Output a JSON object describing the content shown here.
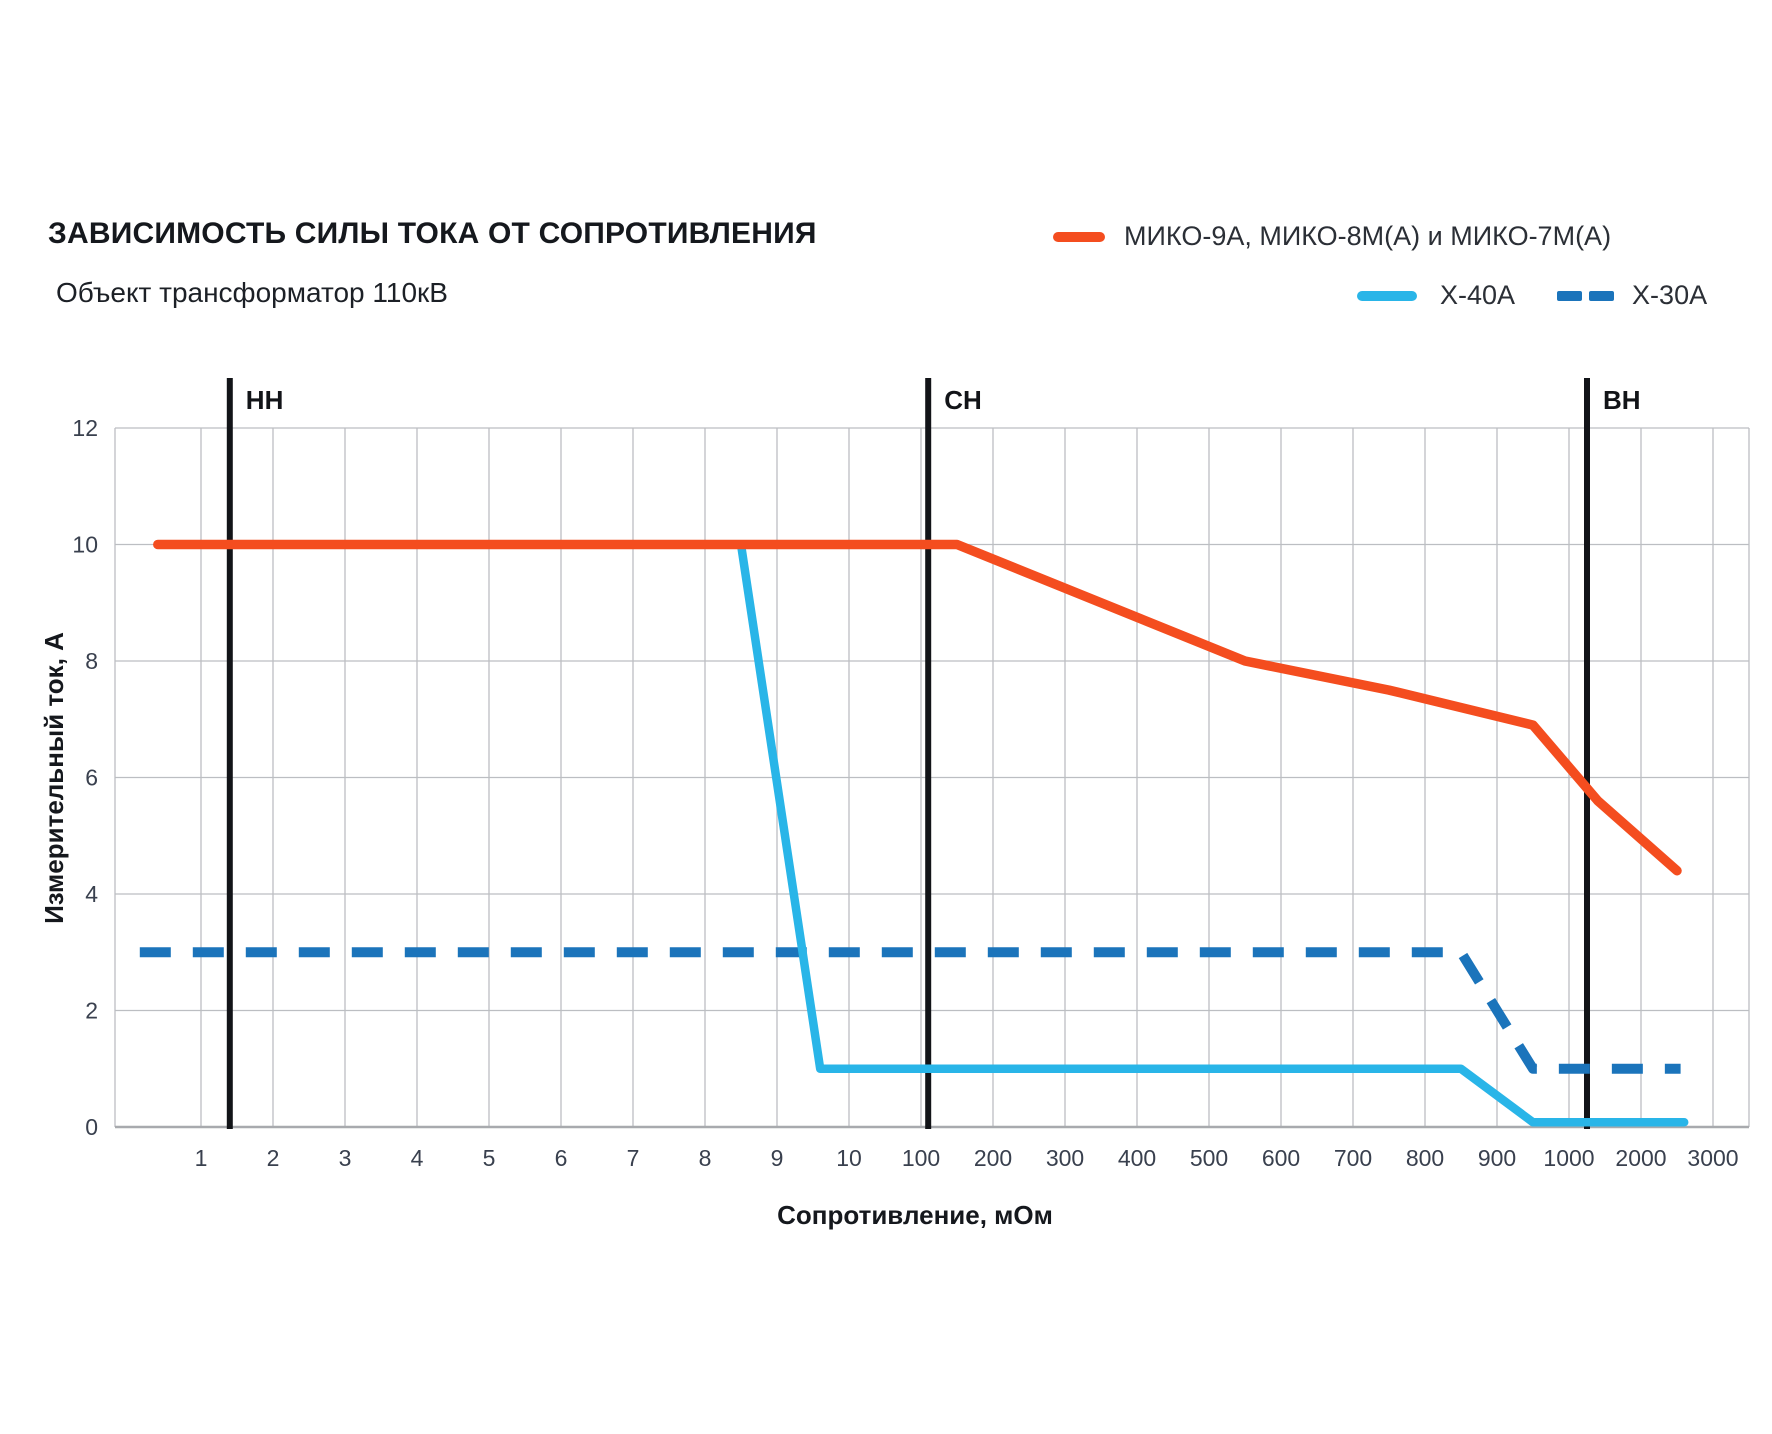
{
  "header": {
    "title": "ЗАВИСИМОСТЬ СИЛЫ ТОКА ОТ СОПРОТИВЛЕНИЯ",
    "subtitle": "Объект трансформатор 110кВ"
  },
  "legend": [
    {
      "label": "МИКО-9А, МИКО-8М(А) и МИКО-7М(А)",
      "color": "#f44d1f",
      "style": "solid"
    },
    {
      "label": "Х-40А",
      "color": "#29b5e8",
      "style": "solid"
    },
    {
      "label": "Х-30А",
      "color": "#1b74bb",
      "style": "dashed"
    }
  ],
  "chart_data": {
    "type": "line",
    "title": "ЗАВИСИМОСТЬ СИЛЫ ТОКА ОТ СОПРОТИВЛЕНИЯ",
    "subtitle": "Объект трансформатор 110кВ",
    "xlabel": "Сопротивление, мОм",
    "ylabel": "Измерительный ток, А",
    "x_scale_note": "piecewise scale: equal spacing per tick; 1-10 step 1, 100-1000 step 100, then 2000, 3000",
    "x_ticks": [
      1,
      2,
      3,
      4,
      5,
      6,
      7,
      8,
      9,
      10,
      100,
      200,
      300,
      400,
      500,
      600,
      700,
      800,
      900,
      1000,
      2000,
      3000
    ],
    "y_ticks": [
      0,
      2,
      4,
      6,
      8,
      10,
      12
    ],
    "ylim": [
      0,
      12
    ],
    "grid": true,
    "legend_position": "top-right",
    "grid_color": "#bcbec2",
    "axis_line_color": "#a8aaae",
    "tick_color": "#39404e",
    "marker_color": "#121418",
    "vertical_markers": [
      {
        "label": "НН",
        "x": 1.4
      },
      {
        "label": "СН",
        "x": 110
      },
      {
        "label": "ВН",
        "x": 1250
      }
    ],
    "series": [
      {
        "name": "МИКО-9А, МИКО-8М(А) и МИКО-7М(А)",
        "color": "#f44d1f",
        "style": "solid",
        "points": [
          [
            0.4,
            10
          ],
          [
            150,
            10
          ],
          [
            550,
            8
          ],
          [
            750,
            7.5
          ],
          [
            950,
            6.9
          ],
          [
            1400,
            5.6
          ],
          [
            2500,
            4.4
          ]
        ]
      },
      {
        "name": "Х-40А",
        "color": "#29b5e8",
        "style": "solid",
        "points": [
          [
            0.4,
            10
          ],
          [
            8.5,
            10
          ],
          [
            9.6,
            1
          ],
          [
            850,
            1
          ],
          [
            950,
            0.08
          ],
          [
            2600,
            0.08
          ]
        ]
      },
      {
        "name": "Х-30А",
        "color": "#1b74bb",
        "style": "dashed",
        "points": [
          [
            0.15,
            3
          ],
          [
            850,
            3
          ],
          [
            950,
            1
          ],
          [
            2550,
            1
          ]
        ]
      }
    ]
  }
}
